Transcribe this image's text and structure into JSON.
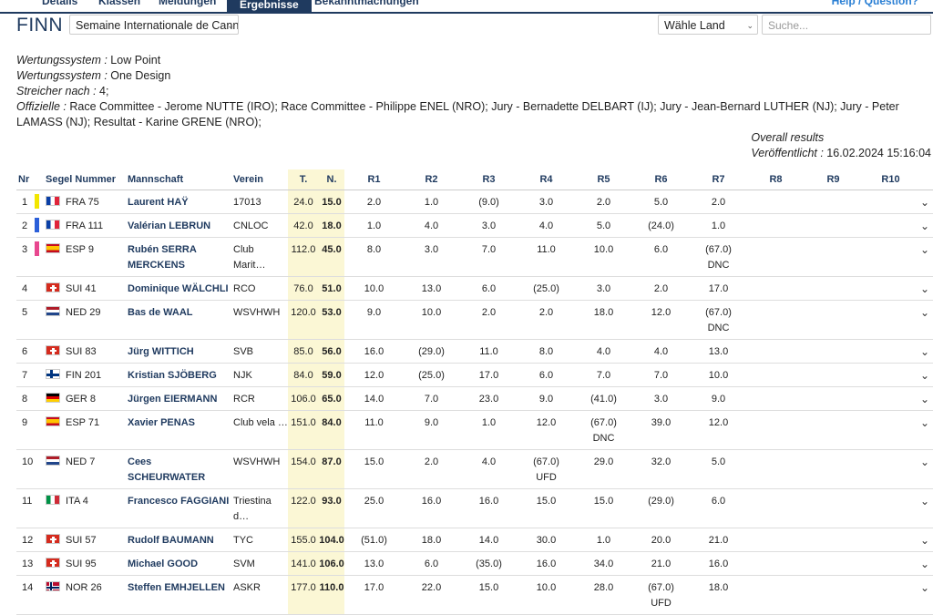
{
  "nav": {
    "tabs": [
      "Details",
      "Klassen",
      "Meldungen",
      "Ergebnisse",
      "Bekanntmachungen"
    ],
    "active_tab": "Ergebnisse",
    "help": "Help / Question?"
  },
  "header": {
    "class_title": "FINN",
    "event_select": "Semaine Internationale de Cann",
    "country_select": "Wähle Land",
    "search_placeholder": "Suche..."
  },
  "meta": {
    "scoring_label1": "Wertungssystem :",
    "scoring_value1": " Low Point",
    "scoring_label2": "Wertungssystem :",
    "scoring_value2": " One Design",
    "discard_label": "Streicher nach :",
    "discard_value": " 4;",
    "officials_label": "Offizielle :",
    "officials_value": " Race Committee - Jerome NUTTE (IRO); Race Committee - Philippe ENEL (NRO); Jury - Bernadette DELBART (IJ); Jury - Jean-Bernard LUTHER (NJ); Jury - Peter LAMASS (NJ); Resultat - Karine GRENE (NRO);"
  },
  "published": {
    "title": "Overall results",
    "label": "Veröffentlicht :",
    "value": " 16.02.2024 15:16:04"
  },
  "table": {
    "headers": [
      "Nr",
      "Segel Nummer",
      "Mannschaft",
      "Verein",
      "T.",
      "N.",
      "R1",
      "R2",
      "R3",
      "R4",
      "R5",
      "R6",
      "R7",
      "R8",
      "R9",
      "R10"
    ],
    "rows": [
      {
        "nr": "1",
        "flag": "fra",
        "sail": "FRA 75",
        "name": "Laurent HAŸ",
        "club": "17013",
        "t": "24.0",
        "n": "15.0",
        "r": [
          "2.0",
          "1.0",
          "(9.0)",
          "3.0",
          "2.0",
          "5.0",
          "2.0"
        ],
        "codes": {},
        "bar": "#f2e600"
      },
      {
        "nr": "2",
        "flag": "fra",
        "sail": "FRA 111",
        "name": "Valérian LEBRUN",
        "club": "CNLOC",
        "t": "42.0",
        "n": "18.0",
        "r": [
          "1.0",
          "4.0",
          "3.0",
          "4.0",
          "5.0",
          "(24.0)",
          "1.0"
        ],
        "codes": {},
        "bar": "#2b5fd9"
      },
      {
        "nr": "3",
        "flag": "esp",
        "sail": "ESP 9",
        "name": "Rubén SERRA MERCKENS",
        "club": "Club Marit…",
        "t": "112.0",
        "n": "45.0",
        "r": [
          "8.0",
          "3.0",
          "7.0",
          "11.0",
          "10.0",
          "6.0",
          "(67.0)"
        ],
        "codes": {
          "6": "DNC"
        },
        "bar": "#e8478f"
      },
      {
        "nr": "4",
        "flag": "sui",
        "sail": "SUI 41",
        "name": "Dominique WÄLCHLI",
        "club": "RCO",
        "t": "76.0",
        "n": "51.0",
        "r": [
          "10.0",
          "13.0",
          "6.0",
          "(25.0)",
          "3.0",
          "2.0",
          "17.0"
        ],
        "codes": {}
      },
      {
        "nr": "5",
        "flag": "ned",
        "sail": "NED 29",
        "name": "Bas de WAAL",
        "club": "WSVHWH",
        "t": "120.0",
        "n": "53.0",
        "r": [
          "9.0",
          "10.0",
          "2.0",
          "2.0",
          "18.0",
          "12.0",
          "(67.0)"
        ],
        "codes": {
          "6": "DNC"
        }
      },
      {
        "nr": "6",
        "flag": "sui",
        "sail": "SUI 83",
        "name": "Jürg WITTICH",
        "club": "SVB",
        "t": "85.0",
        "n": "56.0",
        "r": [
          "16.0",
          "(29.0)",
          "11.0",
          "8.0",
          "4.0",
          "4.0",
          "13.0"
        ],
        "codes": {}
      },
      {
        "nr": "7",
        "flag": "fin",
        "sail": "FIN 201",
        "name": "Kristian SJÖBERG",
        "club": "NJK",
        "t": "84.0",
        "n": "59.0",
        "r": [
          "12.0",
          "(25.0)",
          "17.0",
          "6.0",
          "7.0",
          "7.0",
          "10.0"
        ],
        "codes": {}
      },
      {
        "nr": "8",
        "flag": "ger",
        "sail": "GER 8",
        "name": "Jürgen EIERMANN",
        "club": "RCR",
        "t": "106.0",
        "n": "65.0",
        "r": [
          "14.0",
          "7.0",
          "23.0",
          "9.0",
          "(41.0)",
          "3.0",
          "9.0"
        ],
        "codes": {}
      },
      {
        "nr": "9",
        "flag": "esp",
        "sail": "ESP 71",
        "name": "Xavier PENAS",
        "club": "Club vela …",
        "t": "151.0",
        "n": "84.0",
        "r": [
          "11.0",
          "9.0",
          "1.0",
          "12.0",
          "(67.0)",
          "39.0",
          "12.0"
        ],
        "codes": {
          "4": "DNC"
        }
      },
      {
        "nr": "10",
        "flag": "ned",
        "sail": "NED 7",
        "name": "Cees SCHEURWATER",
        "club": "WSVHWH",
        "t": "154.0",
        "n": "87.0",
        "r": [
          "15.0",
          "2.0",
          "4.0",
          "(67.0)",
          "29.0",
          "32.0",
          "5.0"
        ],
        "codes": {
          "3": "UFD"
        }
      },
      {
        "nr": "11",
        "flag": "ita",
        "sail": "ITA 4",
        "name": "Francesco FAGGIANI",
        "club": "Triestina d…",
        "t": "122.0",
        "n": "93.0",
        "r": [
          "25.0",
          "16.0",
          "16.0",
          "15.0",
          "15.0",
          "(29.0)",
          "6.0"
        ],
        "codes": {}
      },
      {
        "nr": "12",
        "flag": "sui",
        "sail": "SUI 57",
        "name": "Rudolf BAUMANN",
        "club": "TYC",
        "t": "155.0",
        "n": "104.0",
        "r": [
          "(51.0)",
          "18.0",
          "14.0",
          "30.0",
          "1.0",
          "20.0",
          "21.0"
        ],
        "codes": {}
      },
      {
        "nr": "13",
        "flag": "sui",
        "sail": "SUI 95",
        "name": "Michael GOOD",
        "club": "SVM",
        "t": "141.0",
        "n": "106.0",
        "r": [
          "13.0",
          "6.0",
          "(35.0)",
          "16.0",
          "34.0",
          "21.0",
          "16.0"
        ],
        "codes": {}
      },
      {
        "nr": "14",
        "flag": "nor",
        "sail": "NOR 26",
        "name": "Steffen EMHJELLEN",
        "club": "ASKR",
        "t": "177.0",
        "n": "110.0",
        "r": [
          "17.0",
          "22.0",
          "15.0",
          "10.0",
          "28.0",
          "(67.0)",
          "18.0"
        ],
        "codes": {
          "5": "UFD"
        }
      }
    ]
  },
  "icons": {
    "expand": "chevron-down-icon"
  }
}
